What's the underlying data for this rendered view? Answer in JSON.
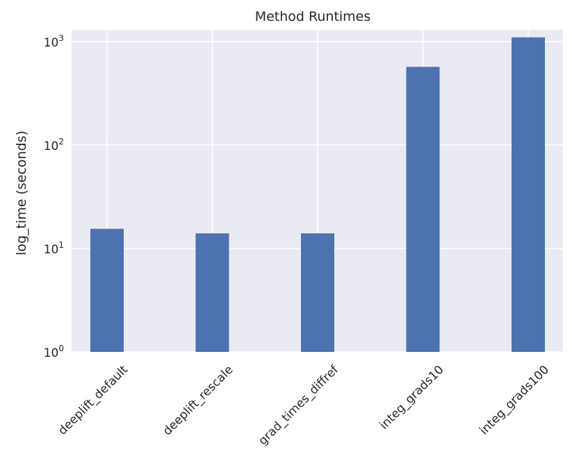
{
  "chart_data": {
    "type": "bar",
    "title": "Method Runtimes",
    "xlabel": "",
    "ylabel": "log_time (seconds)",
    "yscale": "log",
    "ylim": [
      1,
      1300
    ],
    "grid": true,
    "background": "#eaeaf2",
    "bar_color": "#4c72b0",
    "categories": [
      "deeplift_default",
      "deeplift_rescale",
      "grad_times_diffref",
      "integ_grads10",
      "integ_grads100"
    ],
    "values": [
      15.5,
      14.0,
      14.0,
      570,
      1100
    ],
    "yticks": [
      {
        "value": 1,
        "base": "10",
        "exp": "0"
      },
      {
        "value": 10,
        "base": "10",
        "exp": "1"
      },
      {
        "value": 100,
        "base": "10",
        "exp": "2"
      },
      {
        "value": 1000,
        "base": "10",
        "exp": "3"
      }
    ]
  }
}
